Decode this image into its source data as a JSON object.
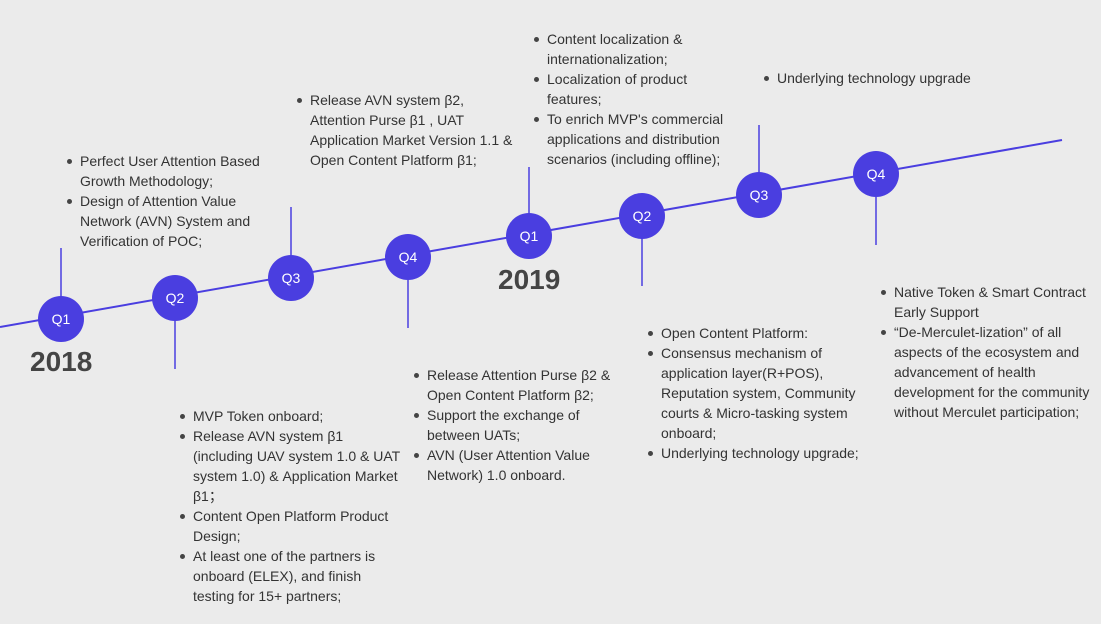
{
  "years": {
    "y2018": "2018",
    "y2019": "2019"
  },
  "quarters": [
    {
      "label": "Q1"
    },
    {
      "label": "Q2"
    },
    {
      "label": "Q3"
    },
    {
      "label": "Q4"
    },
    {
      "label": "Q1"
    },
    {
      "label": "Q2"
    },
    {
      "label": "Q3"
    },
    {
      "label": "Q4"
    }
  ],
  "milestones": {
    "q1_2018": [
      "Perfect User Attention Based Growth Methodology;",
      "Design of Attention Value Network (AVN) System and Verification of POC;"
    ],
    "q2_2018": [
      "MVP Token onboard;",
      "Release AVN system β1 (including UAV system 1.0 & UAT system 1.0) & Application Market β1；",
      "Content Open Platform Product Design;",
      "At least one of the partners is onboard (ELEX), and finish testing for 15+ partners;"
    ],
    "q3_2018": [
      "Release AVN system β2, Attention Purse β1 , UAT Application Market Version 1.1 & Open Content Platform β1;"
    ],
    "q4_2018": [
      "Release Attention Purse β2 & Open Content Platform β2;",
      "Support the exchange of between UATs;",
      "AVN (User Attention Value Network) 1.0 onboard."
    ],
    "q1_2019": [
      "Content localization & internationalization;",
      "Localization of product features;",
      "To enrich MVP's commercial applications and distribution scenarios (including offline);"
    ],
    "q2_2019": [
      "Open Content Platform:",
      "Consensus mechanism of application layer(R+POS), Reputation system, Community courts & Micro-tasking system onboard;",
      "Underlying technology upgrade;"
    ],
    "q3_2019": [
      "Underlying technology upgrade"
    ],
    "q4_2019": [
      "Native Token & Smart Contract Early Support",
      "“De-Merculet-lization” of all aspects of the ecosystem and advancement of health development for the community without Merculet participation;"
    ]
  },
  "colors": {
    "accent": "#4a3ee0",
    "background": "#ebebeb",
    "text": "#333333",
    "year_text": "#444444"
  }
}
